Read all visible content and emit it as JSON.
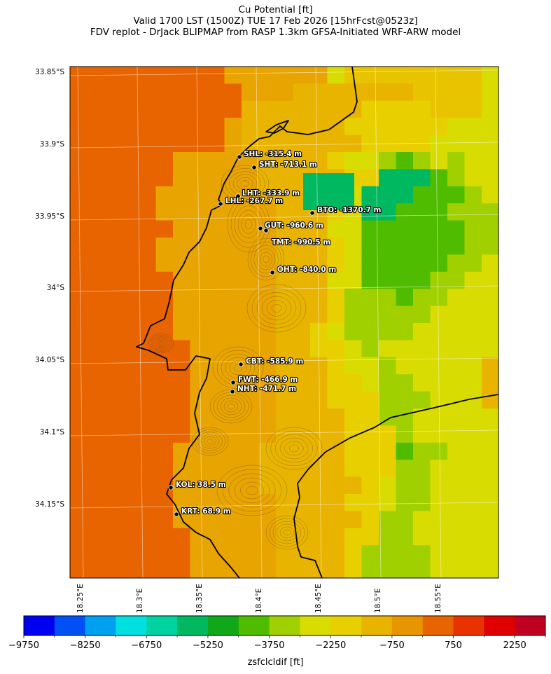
{
  "header": {
    "line1": "Cu Potential [ft]",
    "line2": "Valid 1700 LST (1500Z) TUE 17 Feb 2026 [15hrFcst@0523z]",
    "line3": "FDV replot - DrJack BLIPMAP from RASP 1.3km GFSA-Initiated WRF-ARW model"
  },
  "map": {
    "lat_labels": [
      "33.85°S",
      "33.9°S",
      "33.95°S",
      "34°S",
      "34.05°S",
      "34.1°S",
      "34.15°S"
    ],
    "lon_labels": [
      "18.25°E",
      "18.3°E",
      "18.35°E",
      "18.4°E",
      "18.45°E",
      "18.5°E",
      "18.55°E"
    ],
    "stations": [
      {
        "code": "SHL",
        "text": "SHL: -315.4 m"
      },
      {
        "code": "SHT",
        "text": "SHT: -713.1 m"
      },
      {
        "code": "LHT",
        "text": "LHT: -333.9 m"
      },
      {
        "code": "LHL",
        "text": "LHL: -267.7 m"
      },
      {
        "code": "BTO",
        "text": "BTO: -1370.7 m"
      },
      {
        "code": "GUT",
        "text": "GUT: -960.6 m"
      },
      {
        "code": "TMT",
        "text": "TMT: -990.5 m"
      },
      {
        "code": "OHT",
        "text": "OHT: -840.0 m"
      },
      {
        "code": "CBT",
        "text": "CBT: -585.9 m"
      },
      {
        "code": "FWT",
        "text": "FWT: -466.9 m"
      },
      {
        "code": "NHT",
        "text": "NHT: -471.7 m"
      },
      {
        "code": "KOL",
        "text": "KOL: 38.5 m"
      },
      {
        "code": "KRT",
        "text": "KRT: 68.9 m"
      }
    ]
  },
  "colorbar": {
    "colors": [
      "#0000f0",
      "#0050f5",
      "#00a0f0",
      "#00e0e0",
      "#00d2a0",
      "#00b860",
      "#10a818",
      "#50bc00",
      "#a0d000",
      "#d8dc00",
      "#e8d000",
      "#e8b400",
      "#e89600",
      "#e86400",
      "#e83200",
      "#e00000",
      "#c00020"
    ],
    "tick_labels": [
      "−9750",
      "−8250",
      "−6750",
      "−5250",
      "−3750",
      "−2250",
      "−750",
      "750",
      "2250"
    ],
    "label": "zsfclcldif [ft]"
  }
}
